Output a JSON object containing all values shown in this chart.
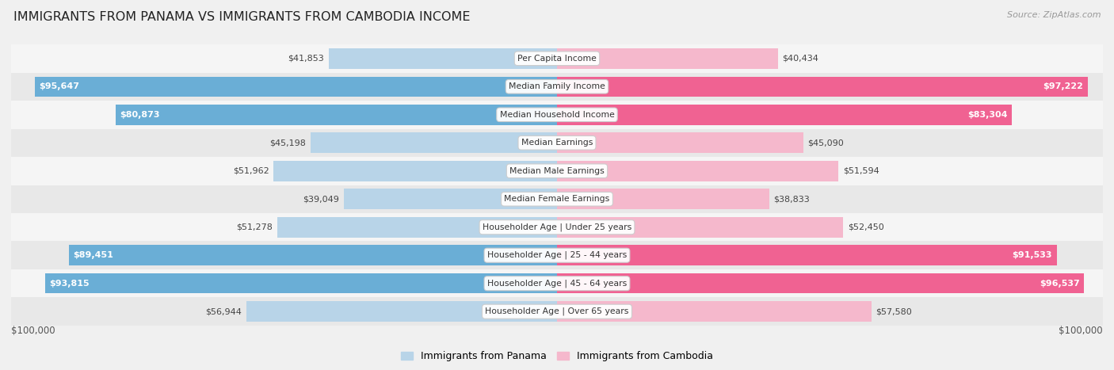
{
  "title": "IMMIGRANTS FROM PANAMA VS IMMIGRANTS FROM CAMBODIA INCOME",
  "source": "Source: ZipAtlas.com",
  "categories": [
    "Per Capita Income",
    "Median Family Income",
    "Median Household Income",
    "Median Earnings",
    "Median Male Earnings",
    "Median Female Earnings",
    "Householder Age | Under 25 years",
    "Householder Age | 25 - 44 years",
    "Householder Age | 45 - 64 years",
    "Householder Age | Over 65 years"
  ],
  "panama_values": [
    41853,
    95647,
    80873,
    45198,
    51962,
    39049,
    51278,
    89451,
    93815,
    56944
  ],
  "cambodia_values": [
    40434,
    97222,
    83304,
    45090,
    51594,
    38833,
    52450,
    91533,
    96537,
    57580
  ],
  "panama_labels": [
    "$41,853",
    "$95,647",
    "$80,873",
    "$45,198",
    "$51,962",
    "$39,049",
    "$51,278",
    "$89,451",
    "$93,815",
    "$56,944"
  ],
  "cambodia_labels": [
    "$40,434",
    "$97,222",
    "$83,304",
    "$45,090",
    "$51,594",
    "$38,833",
    "$52,450",
    "$91,533",
    "$96,537",
    "$57,580"
  ],
  "max_value": 100000,
  "panama_color_light": "#b8d4e8",
  "panama_color_dark": "#6aaed6",
  "cambodia_color_light": "#f5b8cc",
  "cambodia_color_dark": "#f06292",
  "panama_use_dark": [
    false,
    true,
    true,
    false,
    false,
    false,
    false,
    true,
    true,
    false
  ],
  "cambodia_use_dark": [
    false,
    true,
    true,
    false,
    false,
    false,
    false,
    true,
    true,
    false
  ],
  "background_color": "#f0f0f0",
  "row_bg_colors": [
    "#f5f5f5",
    "#e8e8e8",
    "#f5f5f5",
    "#e8e8e8",
    "#f5f5f5",
    "#e8e8e8",
    "#f5f5f5",
    "#e8e8e8",
    "#f5f5f5",
    "#e8e8e8"
  ],
  "label_inside_threshold": 65000,
  "xlabel_left": "$100,000",
  "xlabel_right": "$100,000",
  "legend_panama": "Immigrants from Panama",
  "legend_cambodia": "Immigrants from Cambodia"
}
